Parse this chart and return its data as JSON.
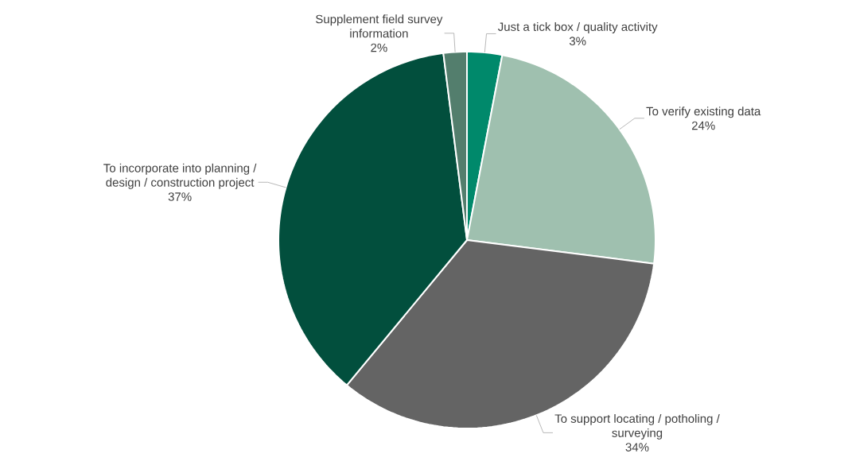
{
  "chart_data": {
    "type": "pie",
    "categories": [
      "Just a tick box / quality activity",
      "To verify existing data",
      "To support locating / potholing / surveying",
      "To incorporate into planning / design / construction project",
      "Supplement field survey information"
    ],
    "values": [
      3,
      24,
      34,
      37,
      2
    ],
    "value_labels": [
      "3%",
      "24%",
      "34%",
      "37%",
      "2%"
    ],
    "colors": [
      "#00896b",
      "#9fc0af",
      "#646464",
      "#024f3d",
      "#537e6d"
    ]
  }
}
